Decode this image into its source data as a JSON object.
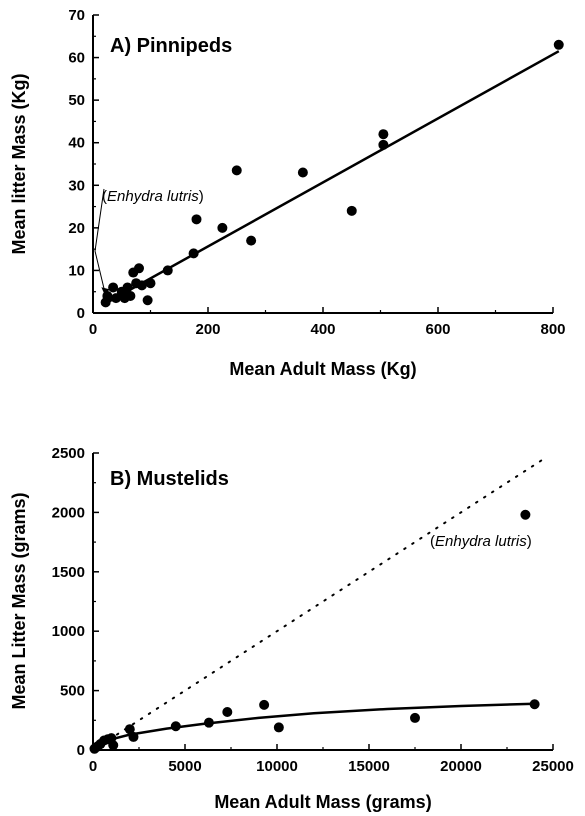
{
  "chart_data": [
    {
      "type": "scatter",
      "title": "A) Pinnipeds",
      "xlabel": "Mean Adult Mass (Kg)",
      "ylabel": "Mean litter Mass (Kg)",
      "xlim": [
        0,
        800
      ],
      "ylim": [
        0,
        70
      ],
      "xticks": [
        "0",
        "200",
        "400",
        "600",
        "800"
      ],
      "yticks": [
        "0",
        "10",
        "20",
        "30",
        "40",
        "50",
        "60",
        "70"
      ],
      "annotation": {
        "prefix": "(",
        "italic": "Enhydra lutris",
        "suffix": ")",
        "target": [
          25,
          3
        ]
      },
      "points": [
        [
          22,
          2.5
        ],
        [
          25,
          4
        ],
        [
          35,
          6
        ],
        [
          40,
          3.5
        ],
        [
          50,
          5
        ],
        [
          55,
          3.5
        ],
        [
          60,
          6
        ],
        [
          65,
          4
        ],
        [
          70,
          9.5
        ],
        [
          75,
          7
        ],
        [
          80,
          10.5
        ],
        [
          85,
          6.5
        ],
        [
          95,
          3
        ],
        [
          100,
          7
        ],
        [
          130,
          10
        ],
        [
          175,
          14
        ],
        [
          180,
          22
        ],
        [
          225,
          20
        ],
        [
          250,
          33.5
        ],
        [
          275,
          17
        ],
        [
          365,
          33
        ],
        [
          450,
          24
        ],
        [
          505,
          39.5
        ],
        [
          505,
          42
        ],
        [
          810,
          63
        ]
      ],
      "fit": {
        "style": "solid",
        "points": [
          [
            25,
            2.5
          ],
          [
            810,
            61.5
          ]
        ]
      }
    },
    {
      "type": "scatter",
      "title": "B) Mustelids",
      "xlabel": "Mean Adult Mass (grams)",
      "ylabel": "Mean Litter Mass (grams)",
      "xlim": [
        0,
        25000
      ],
      "ylim": [
        0,
        2500
      ],
      "xticks": [
        "0",
        "5000",
        "10000",
        "15000",
        "20000",
        "25000"
      ],
      "yticks": [
        "0",
        "500",
        "1000",
        "1500",
        "2000",
        "2500"
      ],
      "annotation": {
        "prefix": "(",
        "italic": "Enhydra lutris",
        "suffix": ")",
        "target": null
      },
      "points": [
        [
          80,
          10
        ],
        [
          150,
          20
        ],
        [
          250,
          30
        ],
        [
          400,
          50
        ],
        [
          600,
          80
        ],
        [
          800,
          90
        ],
        [
          1000,
          100
        ],
        [
          1100,
          40
        ],
        [
          2000,
          175
        ],
        [
          2200,
          110
        ],
        [
          4500,
          200
        ],
        [
          6300,
          230
        ],
        [
          7300,
          320
        ],
        [
          9300,
          380
        ],
        [
          10100,
          190
        ],
        [
          17500,
          270
        ],
        [
          23500,
          1980
        ],
        [
          24000,
          385
        ]
      ],
      "fit": {
        "style": "solid",
        "points": [
          [
            50,
            15
          ],
          [
            1000,
            90
          ],
          [
            2000,
            130
          ],
          [
            4000,
            180
          ],
          [
            6000,
            220
          ],
          [
            9000,
            270
          ],
          [
            12000,
            310
          ],
          [
            16000,
            345
          ],
          [
            20000,
            370
          ],
          [
            24000,
            390
          ]
        ]
      },
      "reference": {
        "style": "dotted",
        "points": [
          [
            0,
            0
          ],
          [
            24500,
            2450
          ]
        ]
      }
    }
  ]
}
